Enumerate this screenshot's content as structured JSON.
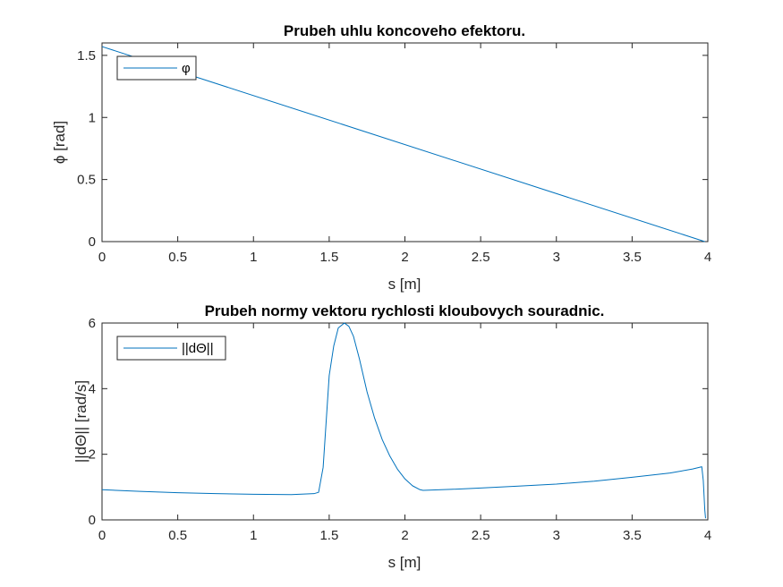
{
  "chart_data": [
    {
      "type": "line",
      "title": "Prubeh uhlu koncoveho efektoru.",
      "xlabel": "s [m]",
      "ylabel": "ϕ [rad]",
      "xlim": [
        0,
        4
      ],
      "ylim": [
        0,
        1.6
      ],
      "xticks": [
        "0",
        "0.5",
        "1",
        "1.5",
        "2",
        "2.5",
        "3",
        "3.5",
        "4"
      ],
      "yticks": [
        "0",
        "0.5",
        "1",
        "1.5"
      ],
      "grid": false,
      "legend_position": "top-left",
      "color": "#0072BD",
      "series": [
        {
          "name": "φ",
          "x": [
            0,
            3.98
          ],
          "y": [
            1.5708,
            0
          ]
        }
      ]
    },
    {
      "type": "line",
      "title": "Prubeh normy vektoru rychlosti kloubovych souradnic.",
      "xlabel": "s [m]",
      "ylabel": "||dΘ|| [rad/s]",
      "xlim": [
        0,
        4
      ],
      "ylim": [
        0,
        6
      ],
      "xticks": [
        "0",
        "0.5",
        "1",
        "1.5",
        "2",
        "2.5",
        "3",
        "3.5",
        "4"
      ],
      "yticks": [
        "0",
        "2",
        "4",
        "6"
      ],
      "grid": false,
      "legend_position": "top-left",
      "color": "#0072BD",
      "series": [
        {
          "name": "||dΘ||",
          "x": [
            0,
            0.25,
            0.5,
            0.75,
            1.0,
            1.25,
            1.4,
            1.43,
            1.46,
            1.5,
            1.53,
            1.56,
            1.6,
            1.63,
            1.66,
            1.7,
            1.75,
            1.8,
            1.85,
            1.9,
            1.95,
            2.0,
            2.05,
            2.1,
            2.12,
            2.3,
            2.5,
            2.75,
            3.0,
            3.25,
            3.5,
            3.75,
            3.9,
            3.96,
            3.97,
            3.98,
            3.985
          ],
          "y": [
            0.92,
            0.87,
            0.83,
            0.8,
            0.78,
            0.77,
            0.8,
            0.84,
            1.6,
            4.4,
            5.3,
            5.85,
            6.0,
            5.9,
            5.6,
            4.9,
            3.9,
            3.1,
            2.45,
            1.95,
            1.55,
            1.25,
            1.04,
            0.92,
            0.9,
            0.93,
            0.97,
            1.03,
            1.09,
            1.18,
            1.3,
            1.43,
            1.55,
            1.62,
            1.2,
            0.3,
            0.05
          ]
        }
      ]
    }
  ]
}
